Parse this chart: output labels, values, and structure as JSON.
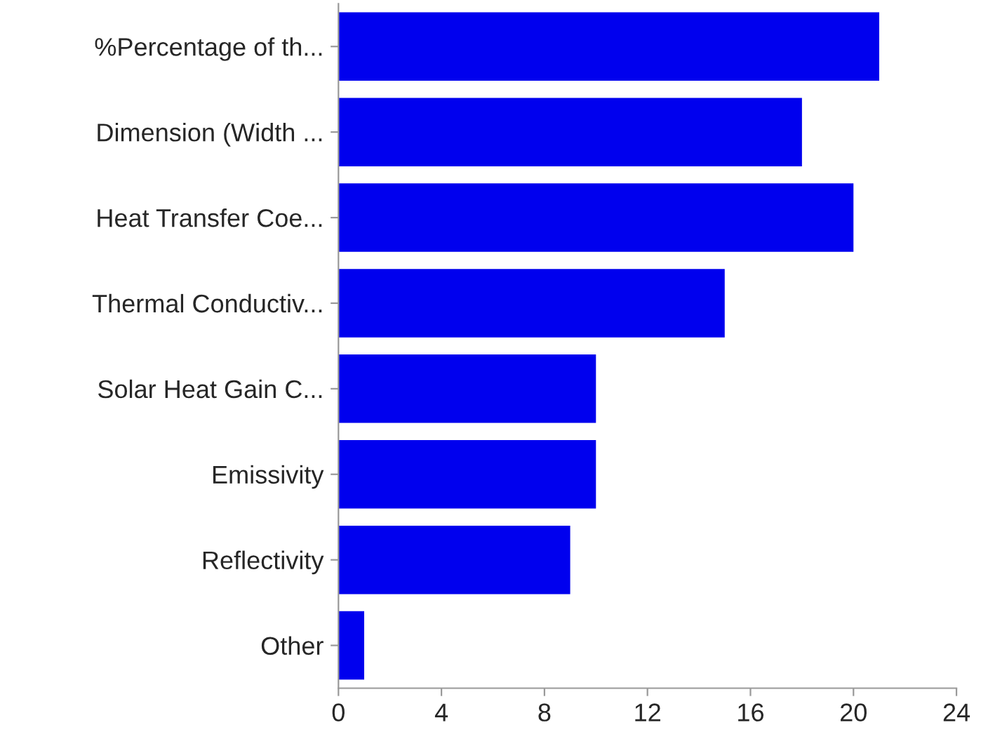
{
  "chart_data": {
    "type": "bar",
    "orientation": "horizontal",
    "categories": [
      "%Percentage of th...",
      "Dimension (Width ...",
      "Heat Transfer Coe...",
      "Thermal Conductiv...",
      "Solar Heat Gain C...",
      "Emissivity",
      "Reflectivity",
      "Other"
    ],
    "values": [
      21,
      18,
      20,
      15,
      10,
      10,
      9,
      1
    ],
    "color": "#0000ee",
    "xlim": [
      0,
      24
    ],
    "xticks": [
      0,
      4,
      8,
      12,
      16,
      20,
      24
    ],
    "grid": false,
    "legend": false
  }
}
